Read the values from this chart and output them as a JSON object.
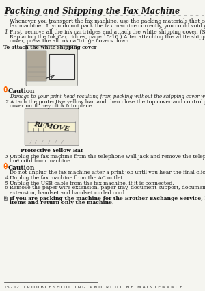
{
  "bg_color": "#f5f5f0",
  "title": "Packing and Shipping the Fax Machine",
  "title_dots": "= = = = = = = = = = = = = = = = = = = = = = = = = = = = = = = = = = = = = = =",
  "intro": "Whenever you transport the fax machine, use the packing materials that came with your\nfax machine.  If you do not pack the fax machine correctly, you could void your warranty.",
  "step1_num": "1",
  "step1_text": "First, remove all the ink cartridges and attach the white shipping cover. (See\nReplacing the Ink Cartridges, page 15-16.) After attaching the white shipping\ncover, press the all ink cartridge covers down.",
  "img1_caption": "To attach the white shipping cover",
  "caution1_label": "Caution",
  "caution1_text": "Damage to your print head resulting from packing without the shipping cover will void your warranty.",
  "step2_num": "2",
  "step2_text": "Attach the protective yellow bar, and then close the top cover and control panel\ncover until they click into place.",
  "img2_caption": "Protective Yellow Bar",
  "step3_num": "3",
  "step3_text": "Unplug the fax machine from the telephone wall jack and remove the telephone\nline cord from machine.",
  "caution2_label": "Caution",
  "caution2_text": "Do not unplug the fax machine after a print job until you hear the final click.",
  "step4_num": "4",
  "step4_text": "Unplug the fax machine from the AC outlet.",
  "step5_num": "5",
  "step5_text": "Unplug the USB cable from the fax machine, if it is connected.",
  "step6_num": "6",
  "step6_text": "Remove the paper wire extension, paper tray, document support, document wire\nextension, handset and handset curled cord.",
  "note_text": "If you are packing the machine for the Brother Exchange Service, keep these\nitems and return only the machine.",
  "footer": "15 - 12   T R O U B L E S H O O T I N G   A N D   R O U T I N E   M A I N T E N A N C E",
  "text_color": "#1a1a1a",
  "caution_color": "#ff6600",
  "line_color": "#999999",
  "footer_color": "#333333"
}
